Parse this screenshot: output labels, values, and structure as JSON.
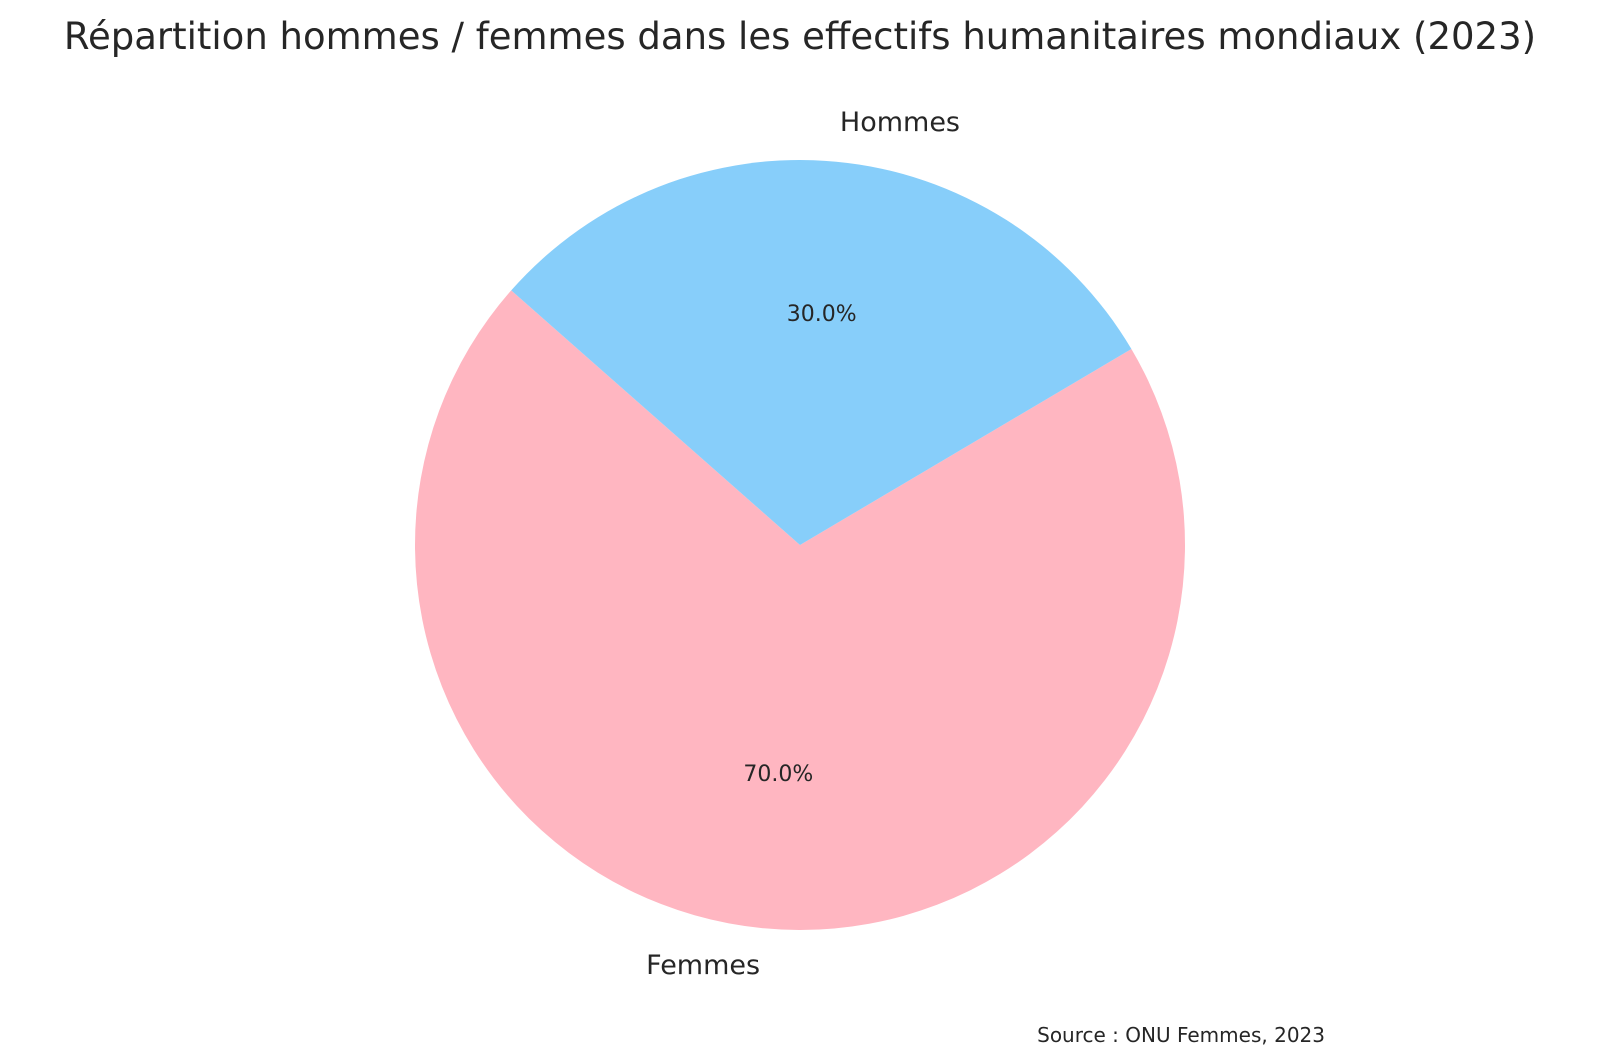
{
  "chart_data": {
    "type": "pie",
    "title": "Répartition hommes / femmes dans les effectifs humanitaires mondiaux (2023)",
    "slices": [
      {
        "label": "Femmes",
        "value": 70.0,
        "pct_label": "70.0%",
        "color": "#FFB6C1"
      },
      {
        "label": "Hommes",
        "value": 30.0,
        "pct_label": "30.0%",
        "color": "#87CEFA"
      }
    ],
    "source": "Source : ONU Femmes, 2023"
  }
}
